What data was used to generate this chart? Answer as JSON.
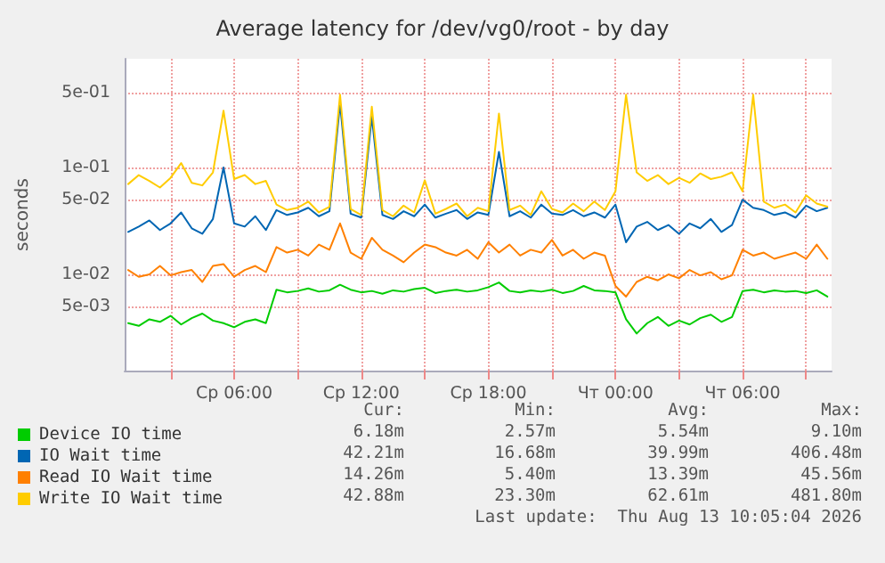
{
  "chart_data": {
    "type": "line",
    "title": "Average latency for /dev/vg0/root - by day",
    "ylabel": "seconds",
    "log": "y",
    "grid": true,
    "legend": "bottom",
    "marker": "none",
    "line_style": "solid",
    "xlim": [
      "2026-08-12T00:50",
      "2026-08-13T10:12"
    ],
    "xticks": [
      {
        "value": "2026-08-12T03:00",
        "label": null
      },
      {
        "value": "2026-08-12T06:00",
        "label": "Ср 06:00"
      },
      {
        "value": "2026-08-12T09:00",
        "label": null
      },
      {
        "value": "2026-08-12T12:00",
        "label": "Ср 12:00"
      },
      {
        "value": "2026-08-12T15:00",
        "label": null
      },
      {
        "value": "2026-08-12T18:00",
        "label": "Ср 18:00"
      },
      {
        "value": "2026-08-12T21:00",
        "label": null
      },
      {
        "value": "2026-08-13T00:00",
        "label": "Чт 00:00"
      },
      {
        "value": "2026-08-13T03:00",
        "label": null
      },
      {
        "value": "2026-08-13T06:00",
        "label": "Чт 06:00"
      },
      {
        "value": "2026-08-13T09:00",
        "label": null
      }
    ],
    "ylim": [
      0.00126,
      1.04
    ],
    "yticks": [
      {
        "value": 0.005,
        "label": "5e-03"
      },
      {
        "value": 0.01,
        "label": "1e-02"
      },
      {
        "value": 0.05,
        "label": "5e-02"
      },
      {
        "value": 0.1,
        "label": "1e-01"
      },
      {
        "value": 0.5,
        "label": "5e-01"
      }
    ],
    "x": [
      "2026-08-12T01:00",
      "2026-08-12T01:30",
      "2026-08-12T02:00",
      "2026-08-12T02:30",
      "2026-08-12T03:00",
      "2026-08-12T03:30",
      "2026-08-12T04:00",
      "2026-08-12T04:30",
      "2026-08-12T05:00",
      "2026-08-12T05:30",
      "2026-08-12T06:00",
      "2026-08-12T06:30",
      "2026-08-12T07:00",
      "2026-08-12T07:30",
      "2026-08-12T08:00",
      "2026-08-12T08:30",
      "2026-08-12T09:00",
      "2026-08-12T09:30",
      "2026-08-12T10:00",
      "2026-08-12T10:30",
      "2026-08-12T11:00",
      "2026-08-12T11:30",
      "2026-08-12T12:00",
      "2026-08-12T12:30",
      "2026-08-12T13:00",
      "2026-08-12T13:30",
      "2026-08-12T14:00",
      "2026-08-12T14:30",
      "2026-08-12T15:00",
      "2026-08-12T15:30",
      "2026-08-12T16:00",
      "2026-08-12T16:30",
      "2026-08-12T17:00",
      "2026-08-12T17:30",
      "2026-08-12T18:00",
      "2026-08-12T18:30",
      "2026-08-12T19:00",
      "2026-08-12T19:30",
      "2026-08-12T20:00",
      "2026-08-12T20:30",
      "2026-08-12T21:00",
      "2026-08-12T21:30",
      "2026-08-12T22:00",
      "2026-08-12T22:30",
      "2026-08-12T23:00",
      "2026-08-12T23:30",
      "2026-08-13T00:00",
      "2026-08-13T00:30",
      "2026-08-13T01:00",
      "2026-08-13T01:30",
      "2026-08-13T02:00",
      "2026-08-13T02:30",
      "2026-08-13T03:00",
      "2026-08-13T03:30",
      "2026-08-13T04:00",
      "2026-08-13T04:30",
      "2026-08-13T05:00",
      "2026-08-13T05:30",
      "2026-08-13T06:00",
      "2026-08-13T06:30",
      "2026-08-13T07:00",
      "2026-08-13T07:30",
      "2026-08-13T08:00",
      "2026-08-13T08:30",
      "2026-08-13T09:00",
      "2026-08-13T09:30",
      "2026-08-13T10:00"
    ],
    "series": [
      {
        "name": "Device IO time",
        "color": "#00cc00",
        "values": [
          0.0035,
          0.0033,
          0.0038,
          0.0036,
          0.0041,
          0.0034,
          0.0039,
          0.0043,
          0.0037,
          0.0035,
          0.0032,
          0.0036,
          0.0038,
          0.0035,
          0.0072,
          0.0068,
          0.007,
          0.0074,
          0.0069,
          0.0071,
          0.008,
          0.0072,
          0.0068,
          0.007,
          0.0066,
          0.0071,
          0.0069,
          0.0073,
          0.0075,
          0.0067,
          0.007,
          0.0072,
          0.0069,
          0.0071,
          0.0076,
          0.0084,
          0.007,
          0.0068,
          0.0071,
          0.0069,
          0.0072,
          0.0067,
          0.007,
          0.0078,
          0.0071,
          0.007,
          0.0068,
          0.0038,
          0.0028,
          0.0035,
          0.004,
          0.0033,
          0.0037,
          0.0034,
          0.0039,
          0.0042,
          0.0036,
          0.004,
          0.007,
          0.0072,
          0.0068,
          0.0071,
          0.0069,
          0.007,
          0.0067,
          0.0071,
          0.0062
        ]
      },
      {
        "name": "IO Wait time",
        "color": "#0066b3",
        "values": [
          0.025,
          0.028,
          0.032,
          0.026,
          0.03,
          0.038,
          0.027,
          0.024,
          0.033,
          0.1,
          0.03,
          0.028,
          0.035,
          0.026,
          0.04,
          0.036,
          0.038,
          0.042,
          0.035,
          0.039,
          0.4,
          0.037,
          0.034,
          0.3,
          0.036,
          0.033,
          0.039,
          0.035,
          0.045,
          0.034,
          0.037,
          0.04,
          0.033,
          0.038,
          0.036,
          0.14,
          0.035,
          0.039,
          0.034,
          0.045,
          0.037,
          0.036,
          0.04,
          0.035,
          0.038,
          0.034,
          0.045,
          0.02,
          0.028,
          0.031,
          0.026,
          0.029,
          0.024,
          0.03,
          0.027,
          0.033,
          0.025,
          0.029,
          0.05,
          0.042,
          0.04,
          0.036,
          0.038,
          0.034,
          0.044,
          0.039,
          0.042
        ]
      },
      {
        "name": "Read IO Wait time",
        "color": "#ff8000",
        "values": [
          0.011,
          0.0095,
          0.01,
          0.012,
          0.0098,
          0.0105,
          0.011,
          0.0085,
          0.012,
          0.0125,
          0.0095,
          0.011,
          0.012,
          0.0105,
          0.018,
          0.016,
          0.017,
          0.015,
          0.019,
          0.017,
          0.03,
          0.016,
          0.014,
          0.022,
          0.017,
          0.015,
          0.013,
          0.016,
          0.019,
          0.018,
          0.016,
          0.015,
          0.017,
          0.014,
          0.02,
          0.016,
          0.019,
          0.015,
          0.017,
          0.016,
          0.021,
          0.015,
          0.017,
          0.014,
          0.016,
          0.015,
          0.0078,
          0.0062,
          0.0085,
          0.0095,
          0.0088,
          0.01,
          0.0092,
          0.011,
          0.0098,
          0.0105,
          0.009,
          0.0098,
          0.017,
          0.015,
          0.016,
          0.014,
          0.015,
          0.016,
          0.014,
          0.019,
          0.014
        ]
      },
      {
        "name": "Write IO Wait time",
        "color": "#ffcc00",
        "values": [
          0.07,
          0.085,
          0.075,
          0.065,
          0.08,
          0.11,
          0.072,
          0.068,
          0.09,
          0.34,
          0.078,
          0.085,
          0.07,
          0.075,
          0.045,
          0.04,
          0.042,
          0.048,
          0.038,
          0.043,
          0.48,
          0.041,
          0.036,
          0.37,
          0.04,
          0.035,
          0.044,
          0.038,
          0.076,
          0.037,
          0.041,
          0.046,
          0.035,
          0.042,
          0.039,
          0.32,
          0.04,
          0.044,
          0.036,
          0.06,
          0.041,
          0.038,
          0.046,
          0.039,
          0.048,
          0.04,
          0.06,
          0.48,
          0.09,
          0.075,
          0.085,
          0.07,
          0.08,
          0.072,
          0.088,
          0.078,
          0.082,
          0.09,
          0.06,
          0.48,
          0.048,
          0.042,
          0.045,
          0.038,
          0.055,
          0.046,
          0.043
        ]
      }
    ],
    "annotations": [
      "Cur:",
      "Min:",
      "Avg:",
      "Max:",
      "6.18m",
      "2.57m",
      "5.54m",
      "9.10m",
      "42.21m",
      "16.68m",
      "39.99m",
      "406.48m",
      "14.26m",
      "5.40m",
      "13.39m",
      "45.56m",
      "42.88m",
      "23.30m",
      "62.61m",
      "481.80m",
      "Last update:  Thu Aug 13 10:05:04 2026"
    ]
  }
}
